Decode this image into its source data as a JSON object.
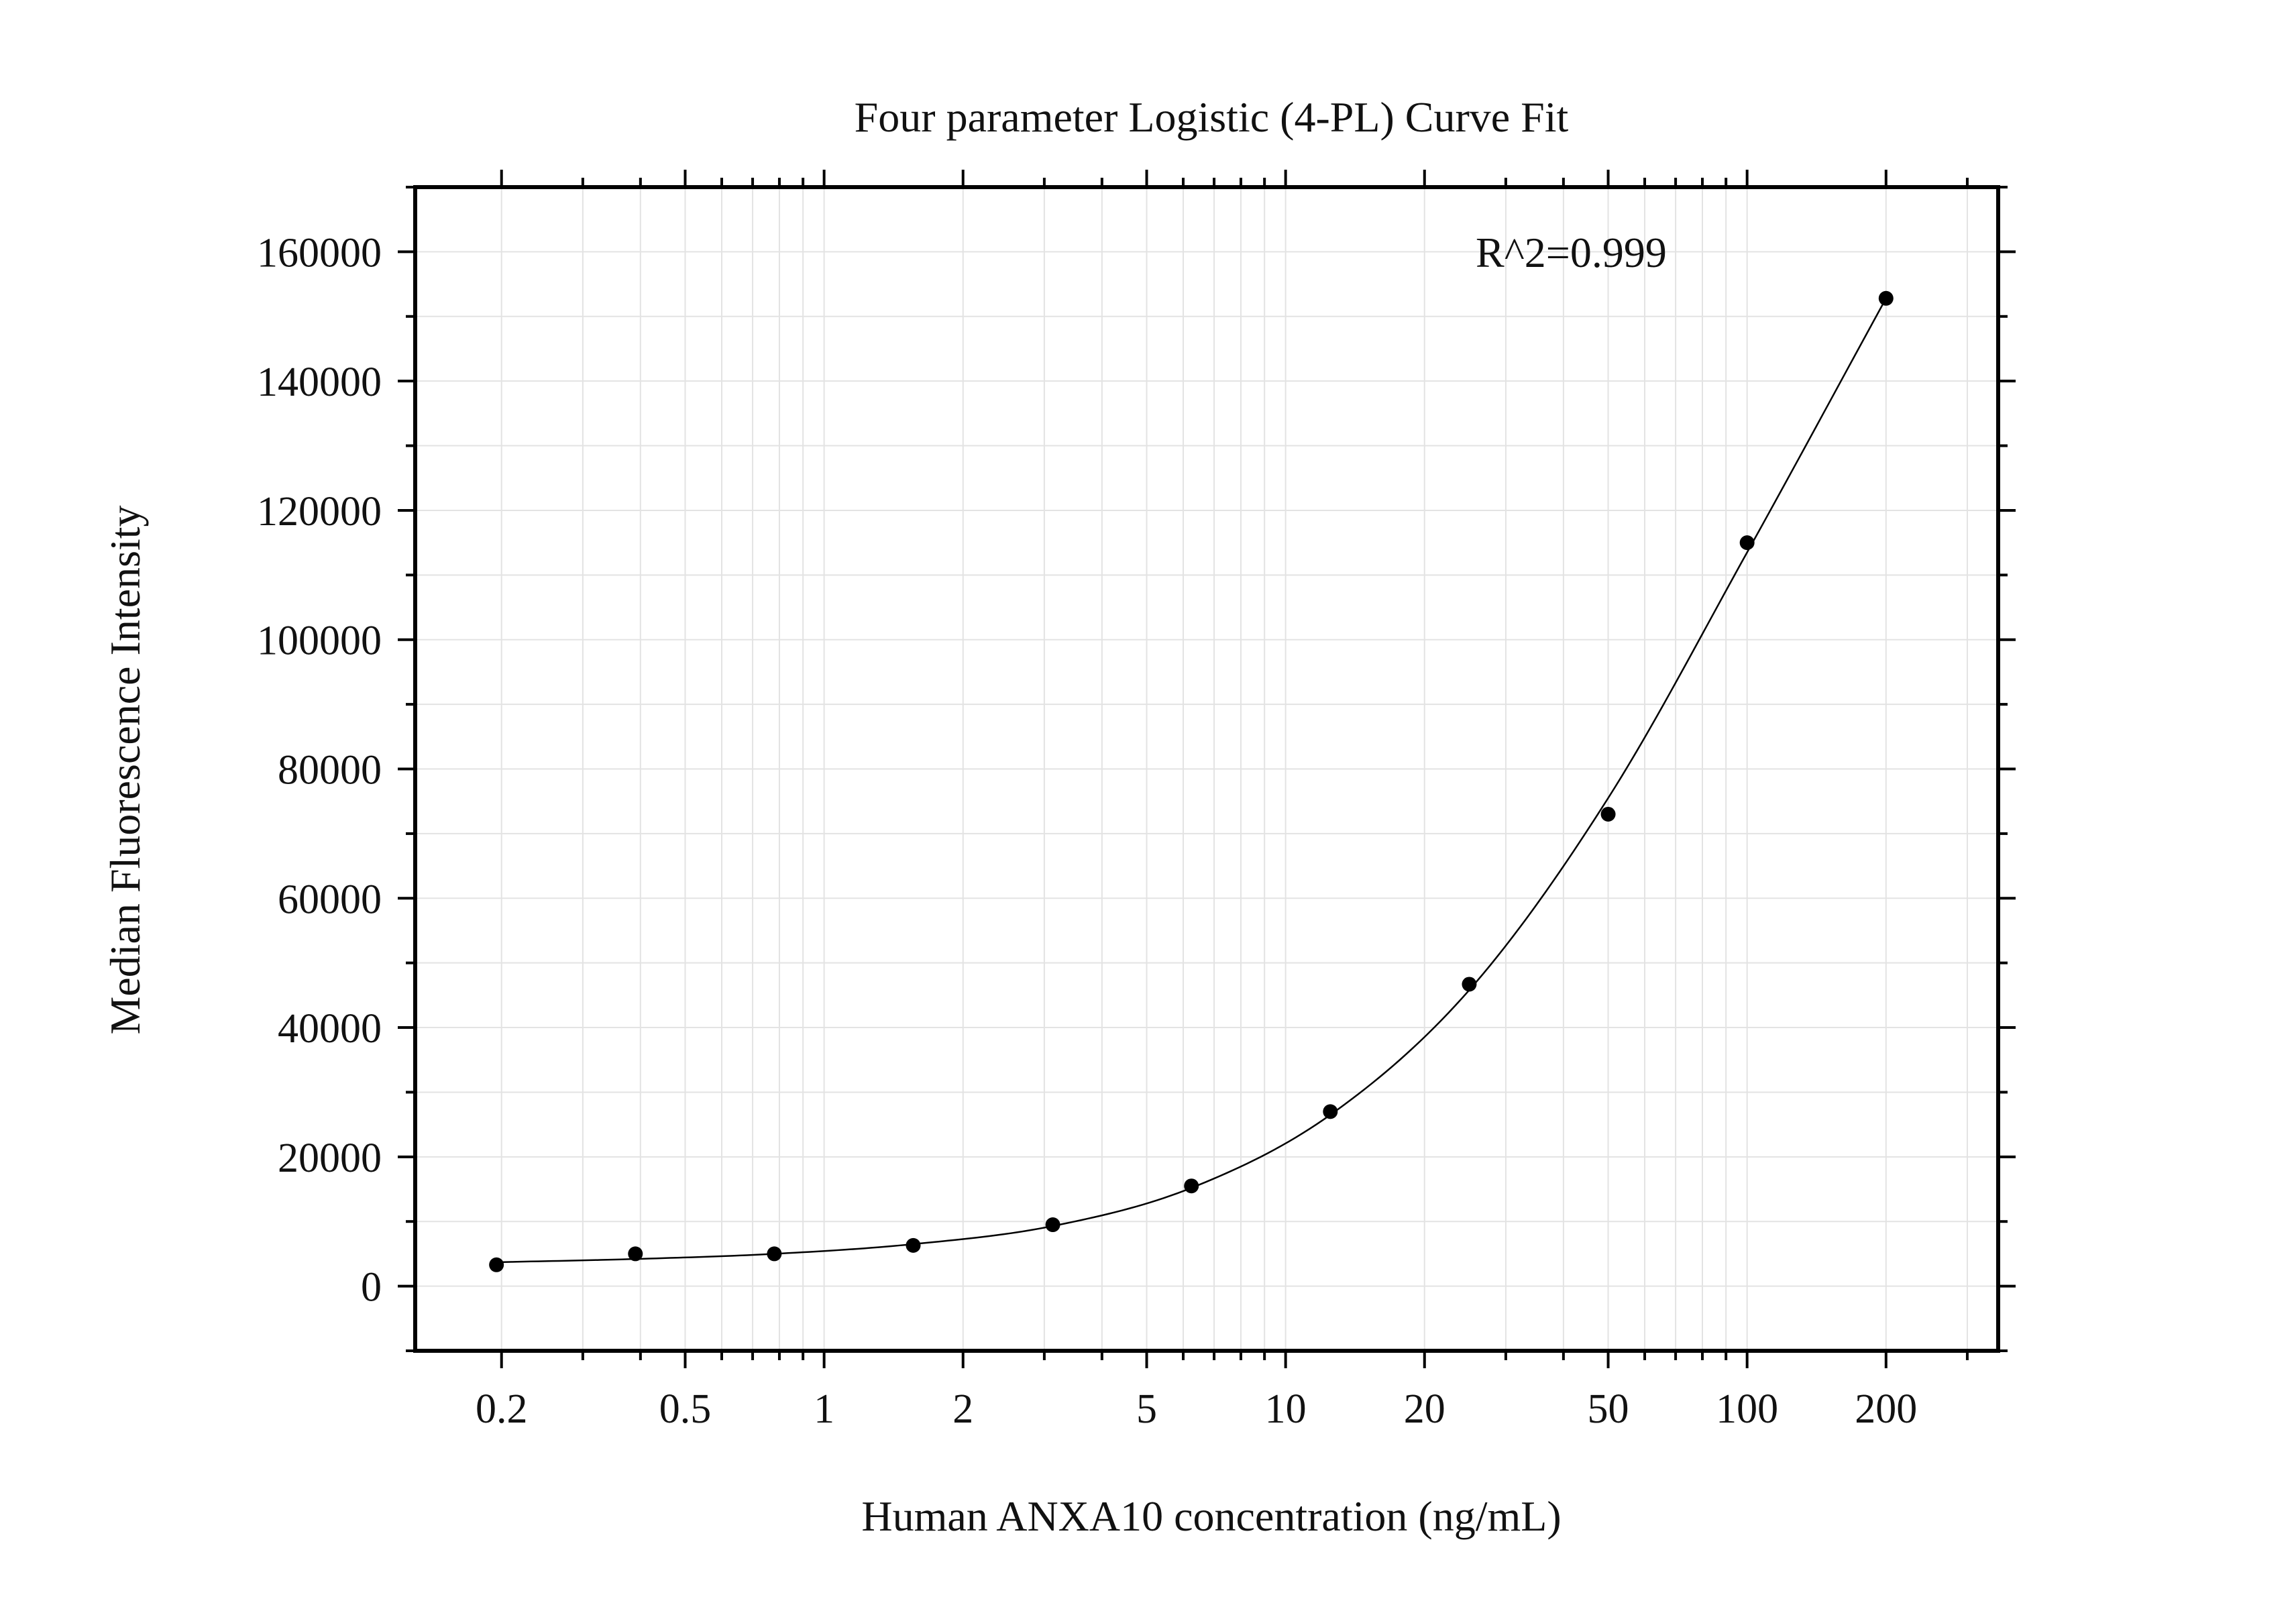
{
  "chart_data": {
    "type": "scatter",
    "title": "Four parameter Logistic (4-PL) Curve Fit",
    "xlabel": "Human ANXA10 concentration (ng/mL)",
    "ylabel": "Median Fluorescence Intensity",
    "x_scale": "log",
    "xlim": [
      0.13,
      350
    ],
    "ylim": [
      -10000,
      170000
    ],
    "grid": true,
    "x_ticks": [
      {
        "value": 0.2,
        "label": "0.2"
      },
      {
        "value": 0.5,
        "label": "0.5"
      },
      {
        "value": 1,
        "label": "1"
      },
      {
        "value": 2,
        "label": "2"
      },
      {
        "value": 5,
        "label": "5"
      },
      {
        "value": 10,
        "label": "10"
      },
      {
        "value": 20,
        "label": "20"
      },
      {
        "value": 50,
        "label": "50"
      },
      {
        "value": 100,
        "label": "100"
      },
      {
        "value": 200,
        "label": "200"
      }
    ],
    "y_ticks": [
      {
        "value": 0,
        "label": "0"
      },
      {
        "value": 20000,
        "label": "20000"
      },
      {
        "value": 40000,
        "label": "40000"
      },
      {
        "value": 60000,
        "label": "60000"
      },
      {
        "value": 80000,
        "label": "80000"
      },
      {
        "value": 100000,
        "label": "100000"
      },
      {
        "value": 120000,
        "label": "120000"
      },
      {
        "value": 140000,
        "label": "140000"
      },
      {
        "value": 160000,
        "label": "160000"
      }
    ],
    "series": [
      {
        "points": [
          {
            "x": 0.195,
            "y": 3300
          },
          {
            "x": 0.39,
            "y": 5000
          },
          {
            "x": 0.78,
            "y": 5000
          },
          {
            "x": 1.56,
            "y": 6300
          },
          {
            "x": 3.13,
            "y": 9500
          },
          {
            "x": 6.25,
            "y": 15500
          },
          {
            "x": 12.5,
            "y": 27000
          },
          {
            "x": 25,
            "y": 46700
          },
          {
            "x": 50,
            "y": 73000
          },
          {
            "x": 100,
            "y": 115000
          },
          {
            "x": 200,
            "y": 152800
          }
        ]
      }
    ],
    "fit_curve": [
      {
        "x": 0.195,
        "y": 3700
      },
      {
        "x": 0.39,
        "y": 4200
      },
      {
        "x": 0.78,
        "y": 5000
      },
      {
        "x": 1.56,
        "y": 6500
      },
      {
        "x": 3.13,
        "y": 9300
      },
      {
        "x": 6.25,
        "y": 15200
      },
      {
        "x": 12.5,
        "y": 26500
      },
      {
        "x": 25,
        "y": 45800
      },
      {
        "x": 50,
        "y": 75500
      },
      {
        "x": 100,
        "y": 113500
      },
      {
        "x": 200,
        "y": 152800
      }
    ],
    "annotation": {
      "text": "R^2=0.999",
      "x": 25,
      "y": 160000
    },
    "colors": {
      "points": "#000000",
      "curve": "#000000",
      "grid": "#e3e3e3",
      "axis": "#000000"
    }
  }
}
